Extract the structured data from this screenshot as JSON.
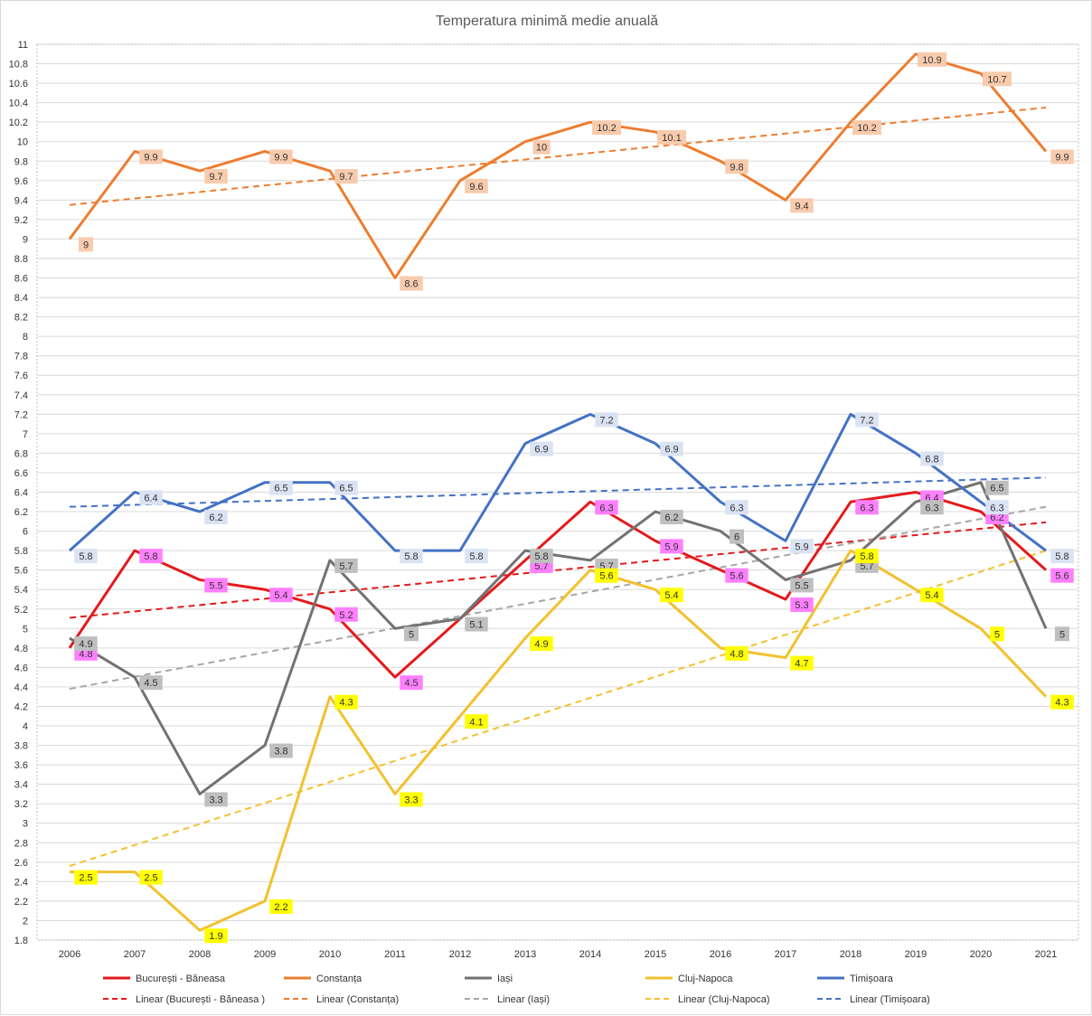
{
  "chart_data": {
    "type": "line",
    "title": "Temperatura minimă medie anuală",
    "xlabel": "",
    "ylabel": "",
    "x": [
      "2006",
      "2007",
      "2008",
      "2009",
      "2010",
      "2011",
      "2012",
      "2013",
      "2014",
      "2015",
      "2016",
      "2017",
      "2018",
      "2019",
      "2020",
      "2021"
    ],
    "ylim": [
      1.8,
      11
    ],
    "ytick_step": 0.2,
    "grid": true,
    "legend_position": "bottom",
    "series": [
      {
        "name": "București - Băneasa",
        "color": "#e31a1c",
        "label_bg": "#ff80ff",
        "values": [
          4.8,
          5.8,
          5.5,
          5.4,
          5.2,
          4.5,
          5.1,
          5.7,
          6.3,
          5.9,
          5.6,
          5.3,
          6.3,
          6.4,
          6.2,
          5.6
        ],
        "labels": [
          "4.8",
          "5.8",
          "5.5",
          "5.4",
          "5.2",
          "4.5",
          "",
          "5.7",
          "6.3",
          "5.9",
          "5.6",
          "5.3",
          "6.3",
          "6.4",
          "6.2",
          "5.6"
        ]
      },
      {
        "name": "Constanța",
        "color": "#ed7d31",
        "label_bg": "#f8cbad",
        "values": [
          9,
          9.9,
          9.7,
          9.9,
          9.7,
          8.6,
          9.6,
          10,
          10.2,
          10.1,
          9.8,
          9.4,
          10.2,
          10.9,
          10.7,
          9.9
        ],
        "labels": [
          "9",
          "9.9",
          "9.7",
          "9.9",
          "9.7",
          "8.6",
          "9.6",
          "10",
          "10.2",
          "10.1",
          "9.8",
          "9.4",
          "10.2",
          "10.9",
          "10.7",
          "9.9"
        ]
      },
      {
        "name": "Iași",
        "color": "#767171",
        "label_bg": "#bfbfbf",
        "values": [
          4.9,
          4.5,
          3.3,
          3.8,
          5.7,
          5,
          5.1,
          5.8,
          5.7,
          6.2,
          6,
          5.5,
          5.7,
          6.3,
          6.5,
          5
        ],
        "labels": [
          "4.9",
          "4.5",
          "3.3",
          "3.8",
          "5.7",
          "5",
          "5.1",
          "5.8",
          "5.7",
          "6.2",
          "6",
          "5.5",
          "5.7",
          "6.3",
          "6.5",
          "5"
        ]
      },
      {
        "name": "Cluj-Napoca",
        "color": "#f2c12e",
        "label_bg": "#ffff00",
        "values": [
          2.5,
          2.5,
          1.9,
          2.2,
          4.3,
          3.3,
          4.1,
          4.9,
          5.6,
          5.4,
          4.8,
          4.7,
          5.8,
          5.4,
          5,
          4.3
        ],
        "labels": [
          "2.5",
          "2.5",
          "1.9",
          "2.2",
          "4.3",
          "3.3",
          "4.1",
          "4.9",
          "5.6",
          "5.4",
          "4.8",
          "4.7",
          "5.8",
          "5.4",
          "5",
          "4.3"
        ]
      },
      {
        "name": "Timișoara",
        "color": "#4472c4",
        "label_bg": "#dae3f3",
        "values": [
          5.8,
          6.4,
          6.2,
          6.5,
          6.5,
          5.8,
          5.8,
          6.9,
          7.2,
          6.9,
          6.3,
          5.9,
          7.2,
          6.8,
          6.3,
          5.8
        ],
        "labels": [
          "5.8",
          "6.4",
          "6.2",
          "6.5",
          "6.5",
          "5.8",
          "5.8",
          "6.9",
          "7.2",
          "6.9",
          "6.3",
          "5.9",
          "7.2",
          "6.8",
          "6.3",
          "5.8"
        ]
      }
    ],
    "trendlines": [
      {
        "name": "Linear (București - Băneasa )",
        "color": "#e31a1c",
        "start": 5.11,
        "end": 6.09
      },
      {
        "name": "Linear (Constanța)",
        "color": "#ed7d31",
        "start": 9.35,
        "end": 10.35
      },
      {
        "name": "Linear (Iași)",
        "color": "#a6a6a6",
        "start": 4.38,
        "end": 6.25
      },
      {
        "name": "Linear (Cluj-Napoca)",
        "color": "#f2c12e",
        "start": 2.56,
        "end": 5.8
      },
      {
        "name": "Linear (Timișoara)",
        "color": "#4472c4",
        "start": 6.25,
        "end": 6.55
      }
    ]
  }
}
